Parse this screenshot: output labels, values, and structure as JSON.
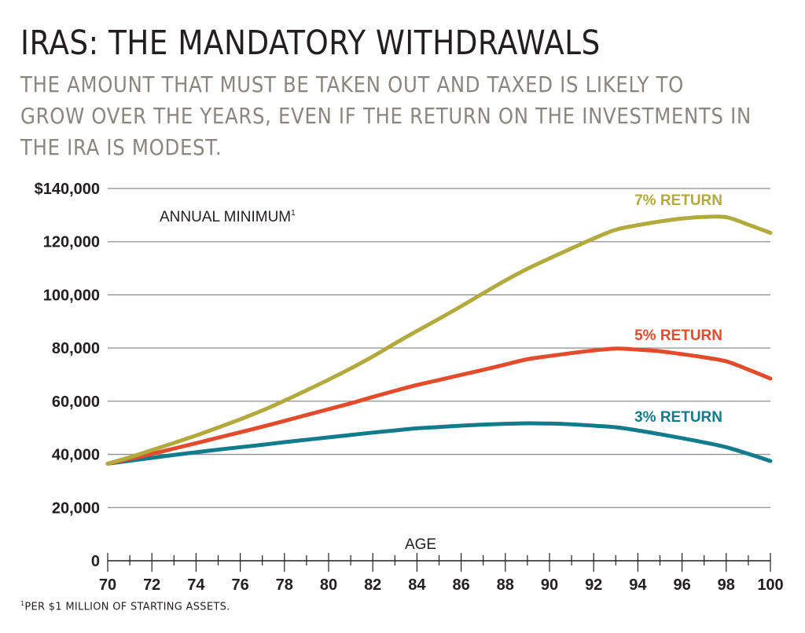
{
  "title": "IRAS: THE MANDATORY WITHDRAWALS",
  "subtitle": "THE AMOUNT THAT MUST BE TAKEN OUT AND TAXED IS LIKELY TO GROW OVER THE YEARS, EVEN IF THE RETURN ON THE INVESTMENTS IN THE IRA IS MODEST.",
  "footnote": {
    "marker": "1",
    "text": "PER $1 MILLION OF STARTING ASSETS."
  },
  "chart_data": {
    "type": "line",
    "ylabel": "ANNUAL MINIMUM",
    "ylabel_footnote": "1",
    "xlabel": "AGE",
    "xlim": [
      70,
      100
    ],
    "ylim": [
      0,
      140000
    ],
    "grid": true,
    "yticks": [
      {
        "value": 0,
        "label": "0"
      },
      {
        "value": 20000,
        "label": "20,000"
      },
      {
        "value": 40000,
        "label": "40,000"
      },
      {
        "value": 60000,
        "label": "60,000"
      },
      {
        "value": 80000,
        "label": "80,000"
      },
      {
        "value": 100000,
        "label": "100,000"
      },
      {
        "value": 120000,
        "label": "120,000"
      },
      {
        "value": 140000,
        "label": "$140,000"
      }
    ],
    "xticks": [
      70,
      72,
      74,
      76,
      78,
      80,
      82,
      84,
      86,
      88,
      90,
      92,
      94,
      96,
      98,
      100
    ],
    "x": [
      70,
      71,
      72,
      73,
      74,
      75,
      76,
      77,
      78,
      79,
      80,
      81,
      82,
      83,
      84,
      85,
      86,
      87,
      88,
      89,
      90,
      91,
      92,
      93,
      94,
      95,
      96,
      97,
      98,
      99,
      100
    ],
    "series": [
      {
        "name": "7% RETURN",
        "color": "#b2aa3d",
        "values": [
          36500,
          38900,
          41600,
          44300,
          47100,
          50100,
          53200,
          56500,
          60200,
          64100,
          68100,
          72300,
          76800,
          81700,
          86400,
          91000,
          95700,
          100600,
          105400,
          109800,
          113700,
          117500,
          121200,
          124500,
          126200,
          127600,
          128700,
          129300,
          129200,
          126400,
          123300
        ]
      },
      {
        "name": "5% RETURN",
        "color": "#e24b2c",
        "values": [
          36500,
          38300,
          40200,
          42200,
          44200,
          46300,
          48300,
          50400,
          52600,
          54800,
          57000,
          59200,
          61600,
          63900,
          66100,
          68000,
          69900,
          71800,
          73800,
          75800,
          77000,
          78100,
          79100,
          79800,
          79400,
          78800,
          77700,
          76500,
          75000,
          71900,
          68500
        ]
      },
      {
        "name": "3% RETURN",
        "color": "#127b8c",
        "values": [
          36500,
          37600,
          38700,
          39800,
          40800,
          41800,
          42700,
          43600,
          44600,
          45500,
          46400,
          47300,
          48200,
          49000,
          49800,
          50300,
          50800,
          51200,
          51500,
          51700,
          51600,
          51300,
          50800,
          50200,
          49000,
          47600,
          46100,
          44500,
          42700,
          40200,
          37500
        ]
      }
    ]
  }
}
